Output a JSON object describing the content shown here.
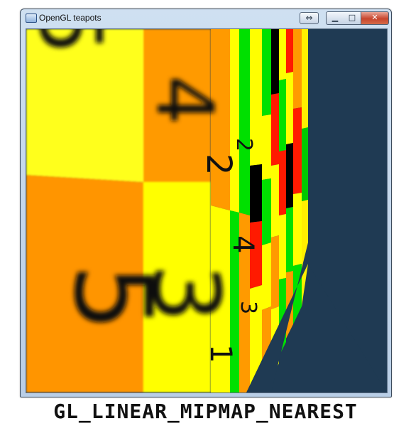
{
  "window": {
    "title": "OpenGL teapots",
    "buttons": {
      "restore_icon": "⇔",
      "minimize_icon": "▁",
      "maximize_icon": "□",
      "close_icon": "✕"
    }
  },
  "viewport": {
    "background_color": "#1f3a53",
    "texture_colors": [
      "#ffff00",
      "#ff8c00",
      "#00e000",
      "#ff1a00",
      "#000000"
    ],
    "digits": [
      "5",
      "4",
      "3",
      "2",
      "1",
      "4",
      "3",
      "2"
    ]
  },
  "caption": "GL_LINEAR_MIPMAP_NEAREST"
}
